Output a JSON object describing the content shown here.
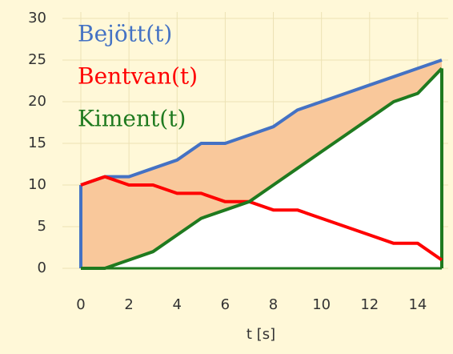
{
  "chart_data": {
    "type": "line",
    "x": [
      0,
      1,
      2,
      3,
      4,
      5,
      6,
      7,
      8,
      9,
      10,
      11,
      12,
      13,
      14,
      15
    ],
    "series": [
      {
        "name": "Bejött(t)",
        "color": "#4472c4",
        "values": [
          10,
          11,
          11,
          12,
          13,
          15,
          15,
          16,
          17,
          19,
          20,
          21,
          22,
          23,
          24,
          25
        ]
      },
      {
        "name": "Bentvan(t)",
        "color": "#ff0000",
        "values": [
          10,
          11,
          10,
          10,
          9,
          9,
          8,
          8,
          7,
          7,
          6,
          5,
          4,
          3,
          3,
          1
        ]
      },
      {
        "name": "Kiment(t)",
        "color": "#1f7a1f",
        "values": [
          0,
          0,
          1,
          2,
          4,
          6,
          7,
          8,
          10,
          12,
          14,
          16,
          18,
          20,
          21,
          24
        ]
      }
    ],
    "fill_color": "#f9c89b",
    "xlabel": "t [s]",
    "xlim": [
      0,
      15
    ],
    "xticks": [
      0,
      2,
      4,
      6,
      8,
      10,
      12,
      14
    ],
    "ylim": [
      0,
      30
    ],
    "yticks": [
      0,
      5,
      10,
      15,
      20,
      25,
      30
    ],
    "grid": true,
    "legend": "upper left"
  }
}
